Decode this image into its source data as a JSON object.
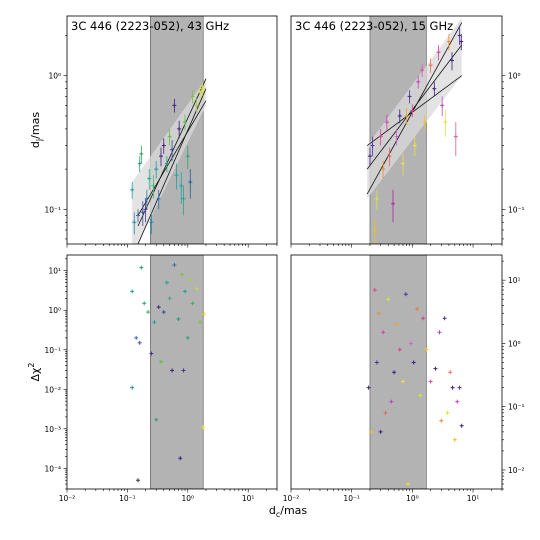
{
  "figure": {
    "xlabel_main": "d",
    "xlabel_sub": "c",
    "xlabel_unit": "/mas",
    "ylabel_top_main": "d",
    "ylabel_top_sub": "j",
    "ylabel_top_unit": "/mas",
    "ylabel_bottom": "Δχ",
    "ylabel_bottom_sup": "2"
  },
  "chart_data": [
    {
      "type": "scatter",
      "panel": "top-left",
      "title": "3C 446 (2223-052), 43 GHz",
      "xscale": "log",
      "yscale": "log",
      "xlim": [
        0.01,
        30
      ],
      "ylim": [
        0.055,
        2.8
      ],
      "shaded_x": [
        0.24,
        1.8
      ],
      "y_ticks_side": "left",
      "x_ticks": [
        {
          "v": 0.01,
          "label": ""
        },
        {
          "v": 0.1,
          "label": ""
        },
        {
          "v": 1,
          "label": ""
        },
        {
          "v": 10,
          "label": ""
        }
      ],
      "y_ticks": [
        {
          "v": 0.1,
          "label": "10⁻¹"
        },
        {
          "v": 1,
          "label": "10⁰"
        }
      ],
      "fit_lines": [
        {
          "x": [
            0.15,
            2.0
          ],
          "y": [
            0.075,
            0.95
          ]
        },
        {
          "x": [
            0.15,
            2.0
          ],
          "y": [
            0.055,
            0.8
          ]
        },
        {
          "x": [
            0.15,
            2.0
          ],
          "y": [
            0.09,
            0.65
          ]
        }
      ],
      "fit_band": {
        "x": [
          0.12,
          2.0
        ],
        "y_low": [
          0.045,
          0.6
        ],
        "y_high": [
          0.16,
          0.95
        ]
      },
      "points": [
        {
          "x": 0.12,
          "y": 0.14,
          "err": 0.02,
          "color": "#20a0a0"
        },
        {
          "x": 0.13,
          "y": 0.08,
          "err": 0.015,
          "color": "#3090a0"
        },
        {
          "x": 0.15,
          "y": 0.09,
          "err": 0.01,
          "color": "#4060a0"
        },
        {
          "x": 0.16,
          "y": 0.22,
          "err": 0.03,
          "color": "#20a070"
        },
        {
          "x": 0.17,
          "y": 0.26,
          "err": 0.04,
          "color": "#30a060"
        },
        {
          "x": 0.18,
          "y": 0.095,
          "err": 0.02,
          "color": "#405090"
        },
        {
          "x": 0.2,
          "y": 0.1,
          "err": 0.02,
          "color": "#503090"
        },
        {
          "x": 0.21,
          "y": 0.12,
          "err": 0.02,
          "color": "#3070a0"
        },
        {
          "x": 0.23,
          "y": 0.17,
          "err": 0.03,
          "color": "#20b090"
        },
        {
          "x": 0.25,
          "y": 0.08,
          "err": 0.015,
          "color": "#2090b0"
        },
        {
          "x": 0.27,
          "y": 0.15,
          "err": 0.03,
          "color": "#40c070"
        },
        {
          "x": 0.3,
          "y": 0.2,
          "err": 0.03,
          "color": "#20a0a0"
        },
        {
          "x": 0.33,
          "y": 0.12,
          "err": 0.02,
          "color": "#3070b0"
        },
        {
          "x": 0.36,
          "y": 0.25,
          "err": 0.04,
          "color": "#402080"
        },
        {
          "x": 0.4,
          "y": 0.3,
          "err": 0.04,
          "color": "#402080"
        },
        {
          "x": 0.45,
          "y": 0.22,
          "err": 0.03,
          "color": "#20a080"
        },
        {
          "x": 0.5,
          "y": 0.35,
          "err": 0.05,
          "color": "#60c040"
        },
        {
          "x": 0.55,
          "y": 0.28,
          "err": 0.05,
          "color": "#3050a0"
        },
        {
          "x": 0.6,
          "y": 0.6,
          "err": 0.07,
          "color": "#402080"
        },
        {
          "x": 0.65,
          "y": 0.18,
          "err": 0.04,
          "color": "#20a0a0"
        },
        {
          "x": 0.72,
          "y": 0.4,
          "err": 0.06,
          "color": "#402070"
        },
        {
          "x": 0.78,
          "y": 0.15,
          "err": 0.04,
          "color": "#20a0b0"
        },
        {
          "x": 0.85,
          "y": 0.12,
          "err": 0.03,
          "color": "#30a090"
        },
        {
          "x": 0.9,
          "y": 0.45,
          "err": 0.06,
          "color": "#60c050"
        },
        {
          "x": 1.0,
          "y": 0.25,
          "err": 0.05,
          "color": "#30a070"
        },
        {
          "x": 1.1,
          "y": 0.16,
          "err": 0.04,
          "color": "#2060a0"
        },
        {
          "x": 1.2,
          "y": 0.7,
          "err": 0.08,
          "color": "#80c040"
        },
        {
          "x": 1.4,
          "y": 0.6,
          "err": 0.07,
          "color": "#a0d040"
        },
        {
          "x": 1.6,
          "y": 0.75,
          "err": 0.09,
          "color": "#d0e020"
        },
        {
          "x": 1.75,
          "y": 0.8,
          "err": 0.09,
          "color": "#e0e020"
        }
      ]
    },
    {
      "type": "scatter",
      "panel": "top-right",
      "title": "3C 446 (2223-052), 15 GHz",
      "xscale": "log",
      "yscale": "log",
      "xlim": [
        0.01,
        30
      ],
      "ylim": [
        0.055,
        2.8
      ],
      "shaded_x": [
        0.2,
        1.7
      ],
      "y_ticks_side": "right",
      "x_ticks": [
        {
          "v": 0.01,
          "label": ""
        },
        {
          "v": 0.1,
          "label": ""
        },
        {
          "v": 1,
          "label": ""
        },
        {
          "v": 10,
          "label": ""
        }
      ],
      "y_ticks": [
        {
          "v": 0.1,
          "label": "10⁻¹"
        },
        {
          "v": 1,
          "label": "10⁰"
        }
      ],
      "fit_lines": [
        {
          "x": [
            0.18,
            6.5
          ],
          "y": [
            0.13,
            2.5
          ]
        },
        {
          "x": [
            0.18,
            6.5
          ],
          "y": [
            0.2,
            1.7
          ]
        },
        {
          "x": [
            0.18,
            6.5
          ],
          "y": [
            0.3,
            1.0
          ]
        }
      ],
      "fit_band": {
        "x": [
          0.18,
          6.5
        ],
        "y_low": [
          0.12,
          1.0
        ],
        "y_high": [
          0.3,
          2.7
        ]
      },
      "points": [
        {
          "x": 0.2,
          "y": 0.25,
          "err": 0.04,
          "color": "#402080"
        },
        {
          "x": 0.22,
          "y": 0.3,
          "err": 0.05,
          "color": "#5030a0"
        },
        {
          "x": 0.24,
          "y": 0.07,
          "err": 0.015,
          "color": "#f0c020"
        },
        {
          "x": 0.26,
          "y": 0.12,
          "err": 0.02,
          "color": "#e0e040"
        },
        {
          "x": 0.3,
          "y": 0.35,
          "err": 0.05,
          "color": "#e04090"
        },
        {
          "x": 0.33,
          "y": 0.2,
          "err": 0.03,
          "color": "#f09030"
        },
        {
          "x": 0.38,
          "y": 0.45,
          "err": 0.06,
          "color": "#d040b0"
        },
        {
          "x": 0.42,
          "y": 0.25,
          "err": 0.04,
          "color": "#f06060"
        },
        {
          "x": 0.48,
          "y": 0.11,
          "err": 0.03,
          "color": "#b020a0"
        },
        {
          "x": 0.55,
          "y": 0.35,
          "err": 0.05,
          "color": "#d060d0"
        },
        {
          "x": 0.62,
          "y": 0.5,
          "err": 0.06,
          "color": "#402080"
        },
        {
          "x": 0.7,
          "y": 0.22,
          "err": 0.04,
          "color": "#f0e040"
        },
        {
          "x": 0.8,
          "y": 0.5,
          "err": 0.07,
          "color": "#f0a030"
        },
        {
          "x": 0.9,
          "y": 0.7,
          "err": 0.08,
          "color": "#5030a0"
        },
        {
          "x": 1.0,
          "y": 0.55,
          "err": 0.06,
          "color": "#e04090"
        },
        {
          "x": 1.1,
          "y": 0.3,
          "err": 0.05,
          "color": "#f0e040"
        },
        {
          "x": 1.25,
          "y": 0.9,
          "err": 0.1,
          "color": "#d040c0"
        },
        {
          "x": 1.45,
          "y": 1.1,
          "err": 0.12,
          "color": "#e050b0"
        },
        {
          "x": 1.6,
          "y": 0.45,
          "err": 0.06,
          "color": "#f0c020"
        },
        {
          "x": 2.0,
          "y": 1.2,
          "err": 0.15,
          "color": "#f07050"
        },
        {
          "x": 2.3,
          "y": 0.8,
          "err": 0.1,
          "color": "#402080"
        },
        {
          "x": 2.7,
          "y": 1.5,
          "err": 0.2,
          "color": "#d040a0"
        },
        {
          "x": 3.1,
          "y": 0.6,
          "err": 0.1,
          "color": "#c040c0"
        },
        {
          "x": 3.5,
          "y": 0.45,
          "err": 0.1,
          "color": "#e0e040"
        },
        {
          "x": 4.0,
          "y": 1.8,
          "err": 0.25,
          "color": "#f09030"
        },
        {
          "x": 4.5,
          "y": 1.3,
          "err": 0.2,
          "color": "#402080"
        },
        {
          "x": 5.2,
          "y": 0.35,
          "err": 0.1,
          "color": "#d06090"
        },
        {
          "x": 6.0,
          "y": 2.0,
          "err": 0.3,
          "color": "#5030b0"
        },
        {
          "x": 6.4,
          "y": 1.8,
          "err": 0.25,
          "color": "#402080"
        }
      ]
    },
    {
      "type": "scatter",
      "panel": "bottom-left",
      "title": "",
      "xscale": "log",
      "yscale": "log",
      "xlim": [
        0.01,
        30
      ],
      "ylim": [
        3e-05,
        25
      ],
      "shaded_x": [
        0.24,
        1.8
      ],
      "y_ticks_side": "left",
      "x_ticks": [
        {
          "v": 0.01,
          "label": "10⁻²"
        },
        {
          "v": 0.1,
          "label": "10⁻¹"
        },
        {
          "v": 1,
          "label": "10⁰"
        },
        {
          "v": 10,
          "label": "10¹"
        }
      ],
      "y_ticks": [
        {
          "v": 0.0001,
          "label": "10⁻⁴"
        },
        {
          "v": 0.001,
          "label": "10⁻³"
        },
        {
          "v": 0.01,
          "label": "10⁻²"
        },
        {
          "v": 0.1,
          "label": "10⁻¹"
        },
        {
          "v": 1,
          "label": "10⁰"
        },
        {
          "v": 10,
          "label": "10¹"
        }
      ],
      "fit_lines": [],
      "points": [
        {
          "x": 0.12,
          "y": 3.0,
          "color": "#20a0a0"
        },
        {
          "x": 0.12,
          "y": 0.011,
          "color": "#2090a0"
        },
        {
          "x": 0.14,
          "y": 0.2,
          "color": "#3070b0"
        },
        {
          "x": 0.15,
          "y": 5e-05,
          "color": "#402080"
        },
        {
          "x": 0.16,
          "y": 0.15,
          "color": "#405090"
        },
        {
          "x": 0.17,
          "y": 12,
          "color": "#20a070"
        },
        {
          "x": 0.19,
          "y": 1.5,
          "color": "#30a080"
        },
        {
          "x": 0.22,
          "y": 0.9,
          "color": "#40b060"
        },
        {
          "x": 0.25,
          "y": 0.08,
          "color": "#5030a0"
        },
        {
          "x": 0.28,
          "y": 0.5,
          "color": "#20a0a0"
        },
        {
          "x": 0.3,
          "y": 0.0017,
          "color": "#30a070"
        },
        {
          "x": 0.33,
          "y": 1.2,
          "color": "#402080"
        },
        {
          "x": 0.36,
          "y": 0.05,
          "color": "#60c040"
        },
        {
          "x": 0.4,
          "y": 0.9,
          "color": "#3050a0"
        },
        {
          "x": 0.45,
          "y": 5.0,
          "color": "#20a0a0"
        },
        {
          "x": 0.5,
          "y": 2.0,
          "color": "#40b070"
        },
        {
          "x": 0.55,
          "y": 0.03,
          "color": "#402080"
        },
        {
          "x": 0.6,
          "y": 14,
          "color": "#3070b0"
        },
        {
          "x": 0.7,
          "y": 0.6,
          "color": "#20a080"
        },
        {
          "x": 0.75,
          "y": 0.00018,
          "color": "#402070"
        },
        {
          "x": 0.8,
          "y": 8.0,
          "color": "#80c040"
        },
        {
          "x": 0.85,
          "y": 0.03,
          "color": "#5030a0"
        },
        {
          "x": 0.9,
          "y": 3.0,
          "color": "#20a0a0"
        },
        {
          "x": 1.0,
          "y": 0.2,
          "color": "#30a080"
        },
        {
          "x": 1.1,
          "y": 6.0,
          "color": "#a0d040"
        },
        {
          "x": 1.2,
          "y": 1.5,
          "color": "#40b060"
        },
        {
          "x": 1.4,
          "y": 3.5,
          "color": "#c0e030"
        },
        {
          "x": 1.6,
          "y": 0.5,
          "color": "#80c040"
        },
        {
          "x": 1.8,
          "y": 0.0011,
          "color": "#e0e020"
        },
        {
          "x": 1.85,
          "y": 0.8,
          "color": "#f0e020"
        }
      ]
    },
    {
      "type": "scatter",
      "panel": "bottom-right",
      "title": "",
      "xscale": "log",
      "yscale": "log",
      "xlim": [
        0.01,
        30
      ],
      "ylim": [
        0.005,
        25
      ],
      "shaded_x": [
        0.2,
        1.7
      ],
      "y_ticks_side": "right",
      "x_ticks": [
        {
          "v": 0.01,
          "label": "10⁻²"
        },
        {
          "v": 0.1,
          "label": "10⁻¹"
        },
        {
          "v": 1,
          "label": "10⁰"
        },
        {
          "v": 10,
          "label": "10¹"
        }
      ],
      "y_ticks": [
        {
          "v": 0.01,
          "label": "10⁻²"
        },
        {
          "v": 0.1,
          "label": "10⁻¹"
        },
        {
          "v": 1,
          "label": "10⁰"
        },
        {
          "v": 10,
          "label": "10¹"
        }
      ],
      "fit_lines": [],
      "points": [
        {
          "x": 0.19,
          "y": 0.2,
          "color": "#402080"
        },
        {
          "x": 0.21,
          "y": 0.04,
          "color": "#f0c020"
        },
        {
          "x": 0.24,
          "y": 7.0,
          "color": "#e04090"
        },
        {
          "x": 0.26,
          "y": 0.5,
          "color": "#5030a0"
        },
        {
          "x": 0.28,
          "y": 3.0,
          "color": "#f09030"
        },
        {
          "x": 0.3,
          "y": 0.04,
          "color": "#402080"
        },
        {
          "x": 0.33,
          "y": 1.5,
          "color": "#d040b0"
        },
        {
          "x": 0.36,
          "y": 0.08,
          "color": "#f06060"
        },
        {
          "x": 0.4,
          "y": 5.0,
          "color": "#e0e040"
        },
        {
          "x": 0.45,
          "y": 0.12,
          "color": "#c040c0"
        },
        {
          "x": 0.5,
          "y": 0.35,
          "color": "#402080"
        },
        {
          "x": 0.55,
          "y": 2.0,
          "color": "#f0a030"
        },
        {
          "x": 0.62,
          "y": 0.8,
          "color": "#e04090"
        },
        {
          "x": 0.7,
          "y": 0.25,
          "color": "#f0e040"
        },
        {
          "x": 0.78,
          "y": 6.0,
          "color": "#5030a0"
        },
        {
          "x": 0.85,
          "y": 0.006,
          "color": "#e0e040"
        },
        {
          "x": 0.95,
          "y": 1.0,
          "color": "#d060d0"
        },
        {
          "x": 1.05,
          "y": 0.5,
          "color": "#402080"
        },
        {
          "x": 1.2,
          "y": 3.5,
          "color": "#f07050"
        },
        {
          "x": 1.35,
          "y": 0.15,
          "color": "#e0e040"
        },
        {
          "x": 1.5,
          "y": 2.5,
          "color": "#d040a0"
        },
        {
          "x": 1.7,
          "y": 0.8,
          "color": "#f0c020"
        },
        {
          "x": 2.0,
          "y": 0.25,
          "color": "#e05090"
        },
        {
          "x": 2.4,
          "y": 0.4,
          "color": "#402080"
        },
        {
          "x": 2.8,
          "y": 1.5,
          "color": "#c040c0"
        },
        {
          "x": 3.0,
          "y": 0.06,
          "color": "#f09030"
        },
        {
          "x": 3.4,
          "y": 2.5,
          "color": "#5030a0"
        },
        {
          "x": 3.8,
          "y": 0.08,
          "color": "#e0e040"
        },
        {
          "x": 4.2,
          "y": 0.35,
          "color": "#f07050"
        },
        {
          "x": 4.6,
          "y": 0.2,
          "color": "#402080"
        },
        {
          "x": 5.0,
          "y": 0.03,
          "color": "#f0c020"
        },
        {
          "x": 5.5,
          "y": 0.12,
          "color": "#d040c0"
        },
        {
          "x": 6.0,
          "y": 0.2,
          "color": "#5030b0"
        },
        {
          "x": 6.5,
          "y": 0.05,
          "color": "#402080"
        }
      ]
    }
  ]
}
